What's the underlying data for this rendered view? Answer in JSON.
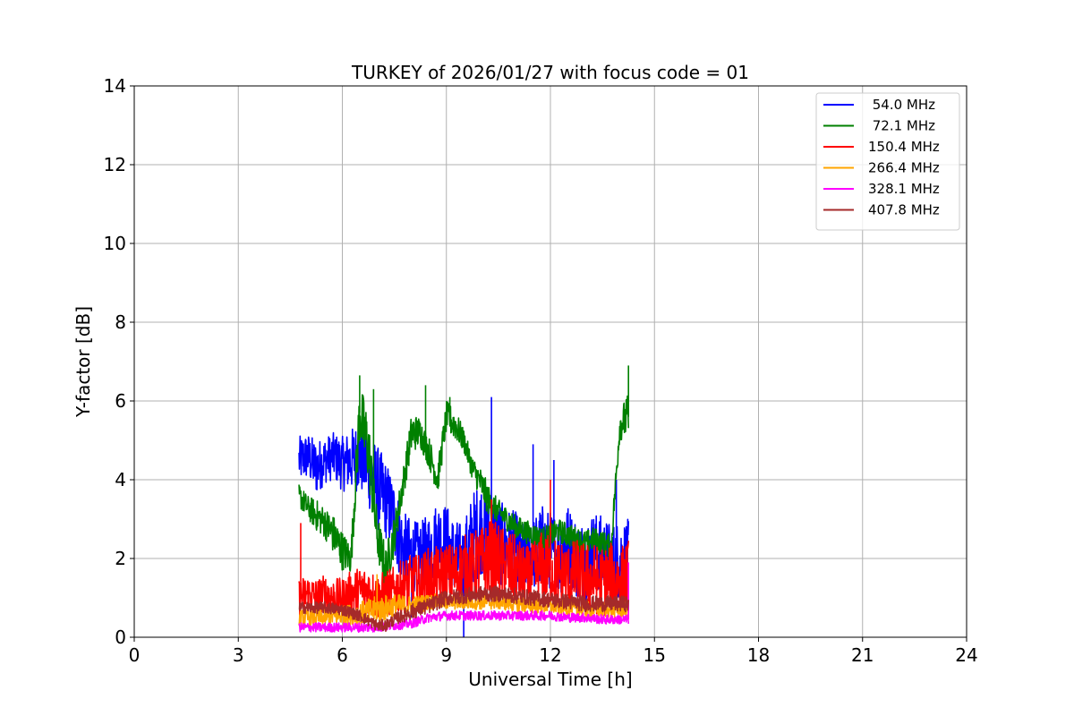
{
  "chart_data": {
    "type": "line",
    "title": "TURKEY of 2026/01/27 with focus code = 01",
    "xlabel": "Universal Time [h]",
    "ylabel": "Y-factor [dB]",
    "xlim": [
      0,
      24
    ],
    "ylim": [
      0,
      14
    ],
    "xticks": [
      0,
      3,
      6,
      9,
      12,
      15,
      18,
      21,
      24
    ],
    "yticks": [
      0,
      2,
      4,
      6,
      8,
      10,
      12,
      14
    ],
    "grid": true,
    "legend_position": "top-right",
    "series": [
      {
        "name": " 54.0 MHz",
        "color": "#0000ff",
        "x": [
          4.75,
          5.0,
          5.25,
          5.5,
          5.75,
          6.0,
          6.25,
          6.5,
          6.75,
          7.0,
          7.25,
          7.5,
          7.75,
          8.0,
          8.25,
          8.5,
          8.75,
          9.0,
          9.25,
          9.5,
          9.75,
          10.0,
          10.25,
          10.5,
          10.75,
          11.0,
          11.25,
          11.5,
          11.75,
          12.0,
          12.25,
          12.5,
          12.75,
          13.0,
          13.25,
          13.5,
          13.75,
          14.0,
          14.25
        ],
        "y": [
          4.5,
          4.6,
          4.3,
          4.5,
          4.6,
          4.4,
          4.5,
          4.6,
          4.3,
          3.8,
          3.5,
          3.0,
          2.2,
          2.1,
          2.0,
          2.2,
          2.5,
          2.4,
          2.0,
          1.8,
          2.5,
          2.8,
          2.6,
          2.4,
          2.3,
          2.2,
          2.0,
          2.1,
          2.3,
          2.2,
          2.1,
          2.4,
          2.0,
          1.9,
          2.2,
          2.1,
          1.9,
          2.0,
          2.1
        ],
        "spread": [
          0.6,
          0.6,
          0.7,
          0.6,
          0.6,
          0.7,
          0.8,
          0.9,
          1.0,
          1.1,
          1.0,
          1.0,
          1.0,
          0.9,
          0.9,
          1.0,
          1.0,
          1.0,
          1.0,
          1.1,
          1.2,
          1.2,
          1.2,
          1.1,
          1.0,
          1.0,
          0.9,
          0.9,
          1.1,
          1.0,
          1.1,
          1.0,
          1.0,
          1.1,
          1.0,
          1.0,
          1.0,
          1.0,
          0.9
        ],
        "spikes": [
          [
            9.5,
            0.0
          ],
          [
            10.3,
            6.1
          ],
          [
            11.5,
            4.9
          ],
          [
            12.1,
            4.5
          ],
          [
            8.0,
            0.5
          ],
          [
            13.9,
            4.0
          ]
        ]
      },
      {
        "name": " 72.1 MHz",
        "color": "#008000",
        "x": [
          4.75,
          5.0,
          5.25,
          5.5,
          5.75,
          6.0,
          6.25,
          6.5,
          6.75,
          7.0,
          7.25,
          7.5,
          7.75,
          8.0,
          8.25,
          8.5,
          8.75,
          9.0,
          9.25,
          9.5,
          9.75,
          10.0,
          10.25,
          10.5,
          10.75,
          11.0,
          11.25,
          11.5,
          11.75,
          12.0,
          12.25,
          12.5,
          12.75,
          13.0,
          13.25,
          13.5,
          13.75,
          14.0,
          14.25
        ],
        "y": [
          3.6,
          3.3,
          3.1,
          2.9,
          2.6,
          2.2,
          2.0,
          5.7,
          4.8,
          2.6,
          1.7,
          2.6,
          3.9,
          5.2,
          5.2,
          4.7,
          4.0,
          5.6,
          5.4,
          5.0,
          4.3,
          3.9,
          3.4,
          3.2,
          3.0,
          2.8,
          2.7,
          2.6,
          2.5,
          2.6,
          2.7,
          2.6,
          2.5,
          2.4,
          2.5,
          2.4,
          2.3,
          5.4,
          5.6
        ],
        "spread": [
          0.3,
          0.3,
          0.4,
          0.4,
          0.5,
          0.5,
          0.4,
          0.8,
          0.9,
          0.6,
          0.6,
          0.5,
          0.4,
          0.5,
          0.4,
          0.4,
          0.4,
          0.4,
          0.4,
          0.3,
          0.3,
          0.4,
          0.4,
          0.3,
          0.3,
          0.3,
          0.3,
          0.3,
          0.3,
          0.3,
          0.3,
          0.3,
          0.3,
          0.3,
          0.3,
          0.3,
          0.3,
          0.4,
          0.6
        ],
        "spikes": [
          [
            6.5,
            6.65
          ],
          [
            8.4,
            6.4
          ],
          [
            9.1,
            6.1
          ],
          [
            14.25,
            6.9
          ],
          [
            6.9,
            6.3
          ]
        ]
      },
      {
        "name": "150.4 MHz",
        "color": "#ff0000",
        "x": [
          4.75,
          5.0,
          5.25,
          5.5,
          5.75,
          6.0,
          6.25,
          6.5,
          6.75,
          7.0,
          7.25,
          7.5,
          7.75,
          8.0,
          8.25,
          8.5,
          8.75,
          9.0,
          9.25,
          9.5,
          9.75,
          10.0,
          10.25,
          10.5,
          10.75,
          11.0,
          11.25,
          11.5,
          11.75,
          12.0,
          12.25,
          12.5,
          12.75,
          13.0,
          13.25,
          13.5,
          13.75,
          14.0,
          14.25
        ],
        "y": [
          1.0,
          1.1,
          1.0,
          1.1,
          1.0,
          1.0,
          1.1,
          1.2,
          1.2,
          1.0,
          1.1,
          1.2,
          1.3,
          1.4,
          1.4,
          1.5,
          1.5,
          1.6,
          1.6,
          1.7,
          1.8,
          1.9,
          2.0,
          1.9,
          1.8,
          1.7,
          1.5,
          1.6,
          1.8,
          1.7,
          1.6,
          1.5,
          1.6,
          1.5,
          1.5,
          1.4,
          1.5,
          1.4,
          1.6
        ],
        "spread": [
          0.5,
          0.5,
          0.5,
          0.5,
          0.5,
          0.5,
          0.6,
          0.6,
          0.6,
          0.6,
          0.6,
          0.6,
          0.7,
          0.7,
          0.7,
          0.8,
          0.8,
          0.8,
          0.8,
          0.9,
          0.9,
          0.9,
          1.0,
          1.0,
          0.9,
          0.9,
          0.8,
          0.8,
          0.9,
          0.9,
          0.9,
          0.9,
          0.9,
          0.9,
          0.9,
          0.9,
          0.9,
          0.9,
          0.9
        ],
        "spikes": [
          [
            4.8,
            2.9
          ],
          [
            12.0,
            4.0
          ],
          [
            10.3,
            3.5
          ]
        ]
      },
      {
        "name": "266.4 MHz",
        "color": "#ffa500",
        "x": [
          4.75,
          5.0,
          5.5,
          6.0,
          6.5,
          7.0,
          7.5,
          8.0,
          8.5,
          9.0,
          9.5,
          10.0,
          10.5,
          11.0,
          11.5,
          12.0,
          12.5,
          13.0,
          13.5,
          14.0,
          14.25
        ],
        "y": [
          0.5,
          0.5,
          0.5,
          0.55,
          0.6,
          0.7,
          0.8,
          0.8,
          0.9,
          0.9,
          0.9,
          0.9,
          0.9,
          0.85,
          0.8,
          0.8,
          0.75,
          0.7,
          0.7,
          0.7,
          0.7
        ],
        "spread": [
          0.2,
          0.2,
          0.2,
          0.25,
          0.3,
          0.35,
          0.3,
          0.25,
          0.2,
          0.2,
          0.2,
          0.2,
          0.2,
          0.2,
          0.2,
          0.2,
          0.2,
          0.2,
          0.2,
          0.2,
          0.2
        ],
        "spikes": [
          [
            7.0,
            1.6
          ]
        ]
      },
      {
        "name": "328.1 MHz",
        "color": "#ff00ff",
        "x": [
          4.75,
          5.0,
          5.5,
          6.0,
          6.5,
          7.0,
          7.5,
          8.0,
          8.5,
          9.0,
          9.5,
          10.0,
          10.5,
          11.0,
          11.5,
          12.0,
          12.5,
          13.0,
          13.5,
          14.0,
          14.25
        ],
        "y": [
          0.25,
          0.25,
          0.25,
          0.25,
          0.25,
          0.25,
          0.3,
          0.35,
          0.5,
          0.55,
          0.55,
          0.55,
          0.55,
          0.55,
          0.55,
          0.55,
          0.5,
          0.5,
          0.45,
          0.45,
          0.45
        ],
        "spread": [
          0.12,
          0.12,
          0.12,
          0.12,
          0.12,
          0.12,
          0.12,
          0.12,
          0.12,
          0.12,
          0.12,
          0.12,
          0.12,
          0.12,
          0.12,
          0.12,
          0.12,
          0.12,
          0.12,
          0.12,
          0.12
        ],
        "spikes": [
          [
            14.25,
            1.9
          ]
        ]
      },
      {
        "name": "407.8 MHz",
        "color": "#a52a2a",
        "x": [
          4.75,
          5.0,
          5.5,
          6.0,
          6.5,
          7.0,
          7.25,
          7.5,
          8.0,
          8.5,
          9.0,
          9.5,
          10.0,
          10.5,
          11.0,
          11.5,
          12.0,
          12.5,
          13.0,
          13.5,
          14.0,
          14.25
        ],
        "y": [
          0.75,
          0.75,
          0.75,
          0.7,
          0.55,
          0.3,
          0.3,
          0.45,
          0.65,
          0.8,
          1.0,
          1.05,
          1.1,
          1.1,
          1.05,
          1.0,
          0.95,
          0.9,
          0.85,
          0.85,
          0.85,
          0.85
        ],
        "spread": [
          0.15,
          0.15,
          0.15,
          0.15,
          0.15,
          0.15,
          0.15,
          0.15,
          0.2,
          0.2,
          0.2,
          0.2,
          0.2,
          0.2,
          0.2,
          0.2,
          0.2,
          0.2,
          0.2,
          0.2,
          0.2,
          0.2
        ],
        "spikes": []
      }
    ]
  }
}
